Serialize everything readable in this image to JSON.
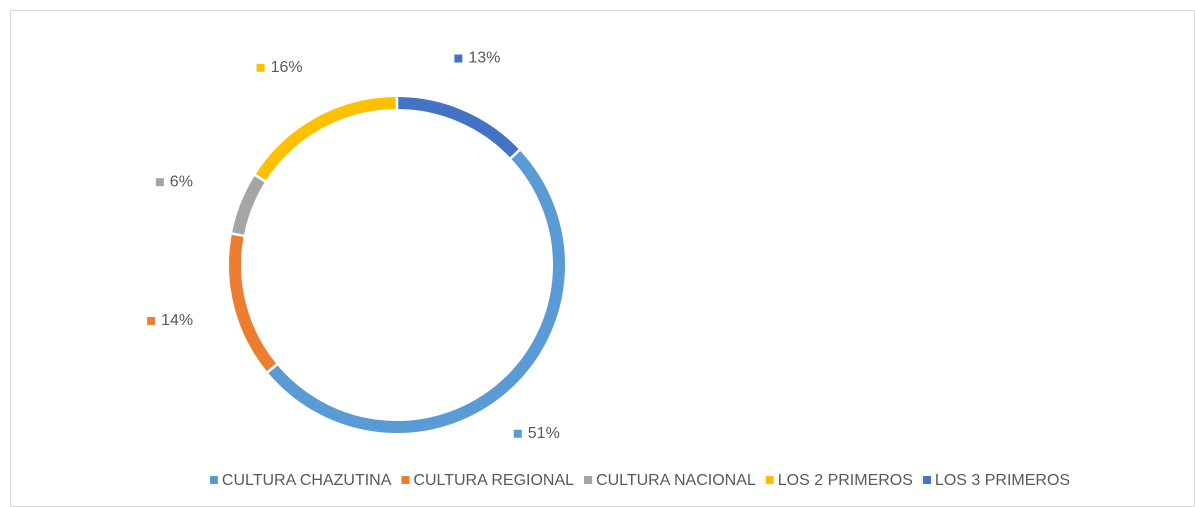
{
  "chart_data": {
    "type": "donut",
    "categories": [
      "CULTURA CHAZUTINA",
      "CULTURA REGIONAL",
      "CULTURA NACIONAL",
      "LOS 2 PRIMEROS",
      "LOS 3 PRIMEROS"
    ],
    "values": [
      51,
      14,
      6,
      16,
      13
    ],
    "value_labels": [
      "51%",
      "14%",
      "6%",
      "16%",
      "13%"
    ],
    "colors": [
      "#5b9bd5",
      "#ed7d31",
      "#a5a5a5",
      "#ffc000",
      "#4472c4"
    ],
    "legend": "bottom"
  }
}
